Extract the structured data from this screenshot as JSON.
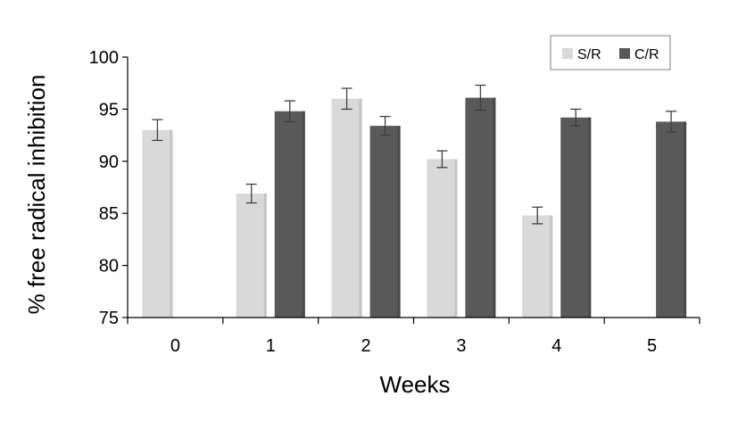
{
  "chart_data": {
    "type": "bar",
    "title": "",
    "xlabel": "Weeks",
    "ylabel": "% free radical inhibition",
    "ylim": [
      75,
      100
    ],
    "yticks": [
      75,
      80,
      85,
      90,
      95,
      100
    ],
    "categories": [
      "0",
      "1",
      "2",
      "3",
      "4",
      "5"
    ],
    "series": [
      {
        "name": "S/R",
        "color": "#d9d9d9",
        "values": [
          93.0,
          86.9,
          96.0,
          90.2,
          84.8,
          null
        ],
        "errors": [
          1.0,
          0.9,
          1.0,
          0.8,
          0.8,
          null
        ]
      },
      {
        "name": "C/R",
        "color": "#595959",
        "values": [
          null,
          94.8,
          93.4,
          96.1,
          94.2,
          93.8
        ],
        "errors": [
          null,
          1.0,
          0.9,
          1.2,
          0.8,
          1.0
        ]
      }
    ],
    "legend": "top-right",
    "grid": false
  }
}
